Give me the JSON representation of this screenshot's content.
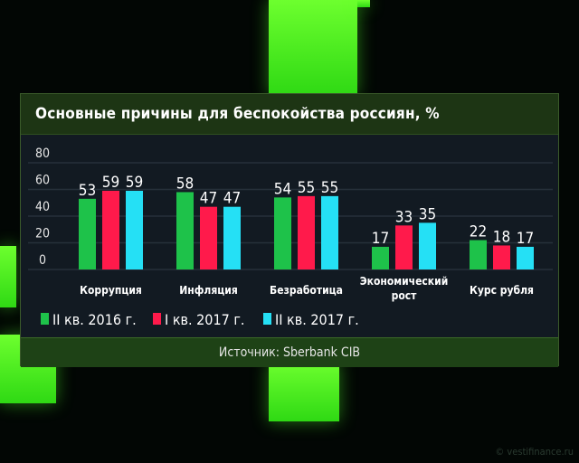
{
  "chart_data": {
    "type": "bar",
    "title": "Основные причины для беспокойства россиян, %",
    "categories": [
      "Коррупция",
      "Инфляция",
      "Безработица",
      "Экономический рост",
      "Курс рубля"
    ],
    "category_lines": [
      [
        "Коррупция"
      ],
      [
        "Инфляция"
      ],
      [
        "Безработица"
      ],
      [
        "Экономический",
        "рост"
      ],
      [
        "Курс рубля"
      ]
    ],
    "series": [
      {
        "name": "II кв. 2016 г.",
        "color": "#1ec24a",
        "values": [
          53,
          58,
          54,
          17,
          22
        ]
      },
      {
        "name": "I кв. 2017 г.",
        "color": "#ff1a4b",
        "values": [
          59,
          47,
          55,
          33,
          18
        ]
      },
      {
        "name": "II кв. 2017 г.",
        "color": "#25e0f5",
        "values": [
          59,
          47,
          55,
          35,
          17
        ]
      }
    ],
    "yticks": [
      0,
      20,
      40,
      60,
      80
    ],
    "ylim": [
      0,
      80
    ],
    "grid": true,
    "legend_position": "bottom-left",
    "xlabel": "",
    "ylabel": ""
  },
  "source": "Источник: Sberbank CIB",
  "watermark": "© vestifinance.ru"
}
